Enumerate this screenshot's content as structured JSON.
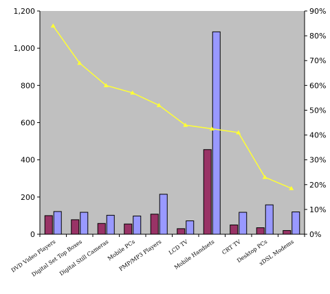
{
  "chart_data": {
    "type": "bar",
    "categories": [
      "DVD Video Players",
      "Digital Set Top Boxes",
      "Digital Still Cameras",
      "Mobile PCs",
      "PMP/MP3 Players",
      "LCD TV",
      "Mobile Handsets",
      "CRT TV",
      "Desktop PCs",
      "xDSL Modems"
    ],
    "series": [
      {
        "values": [
          100,
          78,
          58,
          55,
          108,
          30,
          455,
          50,
          35,
          20
        ],
        "color": "#993366",
        "axis": "left",
        "kind": "bar"
      },
      {
        "values": [
          122,
          118,
          102,
          98,
          215,
          72,
          1088,
          118,
          158,
          120
        ],
        "color": "#9999ff",
        "axis": "left",
        "kind": "bar"
      },
      {
        "values": [
          84,
          69,
          60,
          57,
          52,
          44,
          42.5,
          41,
          23,
          18.5
        ],
        "color": "#ffff33",
        "axis": "right",
        "kind": "line"
      }
    ],
    "ylim": [
      0,
      1200
    ],
    "yticks": [
      "0",
      "200",
      "400",
      "600",
      "800",
      "1,000",
      "1,200"
    ],
    "y2lim": [
      0,
      90
    ],
    "y2ticks": [
      "0%",
      "10%",
      "20%",
      "30%",
      "40%",
      "50%",
      "60%",
      "70%",
      "80%",
      "90%"
    ],
    "grid": false,
    "plot_background": "#c0c0c0",
    "xlabel": "",
    "ylabel": "",
    "title": ""
  }
}
